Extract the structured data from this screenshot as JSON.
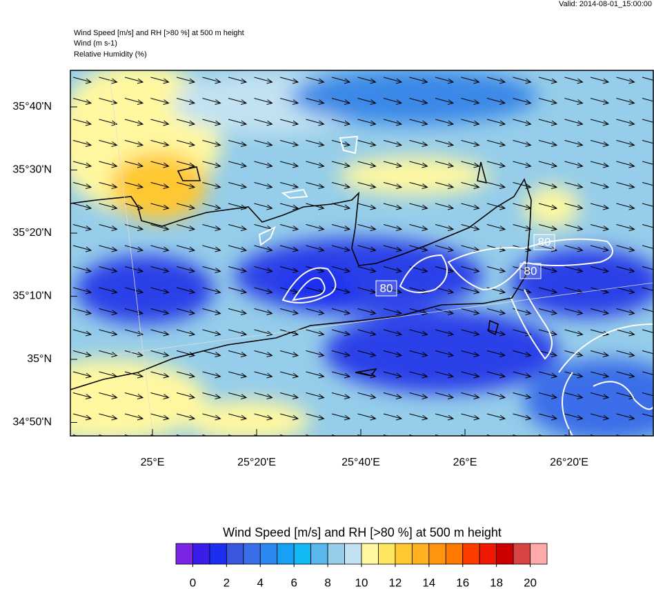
{
  "valid": "Valid: 2014-08-01_15:00:00",
  "header": {
    "lines": [
      "Wind Speed [m/s] and RH [>80 %] at 500 m height",
      "Wind   (m s-1)",
      "Relative Humidity   (%)"
    ]
  },
  "map": {
    "lat_labels": [
      "35°40'N",
      "35°30'N",
      "35°20'N",
      "35°10'N",
      "35°N",
      "34°50'N"
    ],
    "lon_labels": [
      "25°E",
      "25°20'E",
      "25°40'E",
      "26°E",
      "26°20'E"
    ],
    "contour_labels": [
      "80",
      "80",
      "80"
    ]
  },
  "colorbar": {
    "title": "Wind Speed [m/s] and RH [>80 %] at 500 m height",
    "colors": [
      "#7a24e4",
      "#3a1ee8",
      "#1c2ef0",
      "#3a58de",
      "#3a6ee8",
      "#2a88f0",
      "#18a0f5",
      "#12baf5",
      "#58b8ec",
      "#96cdea",
      "#c2e2f2",
      "#fff8a0",
      "#ffe660",
      "#ffc830",
      "#ffb020",
      "#ff9410",
      "#ff7800",
      "#ff3c00",
      "#f01800",
      "#cc0000",
      "#d84444",
      "#ffaaaa"
    ],
    "ticks": [
      0,
      2,
      4,
      6,
      8,
      10,
      12,
      14,
      16,
      18,
      20
    ]
  }
}
